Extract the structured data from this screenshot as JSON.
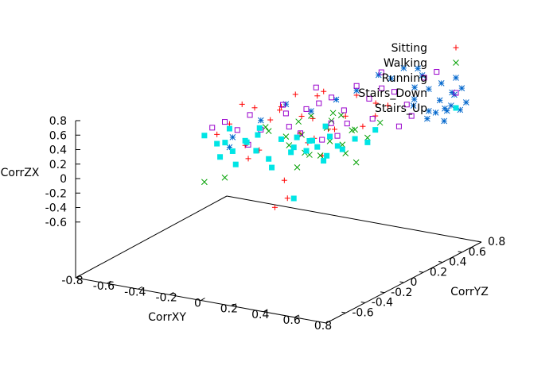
{
  "chart_data": {
    "type": "scatter",
    "projection": "3d",
    "grid": false,
    "legend_position": "top-right",
    "axes": {
      "x": {
        "label": "CorrXY",
        "range": [
          -0.8,
          0.8
        ],
        "ticks": [
          "-0.8",
          "-0.6",
          "-0.4",
          "-0.2",
          "0",
          "0.2",
          "0.4",
          "0.6",
          "0.8"
        ]
      },
      "y": {
        "label": "CorrYZ",
        "range": [
          -0.8,
          0.8
        ],
        "ticks": [
          "-0.8",
          "-0.6",
          "-0.4",
          "-0.2",
          "0",
          "0.2",
          "0.4",
          "0.6",
          "0.8"
        ],
        "visible_ticks": [
          "-0.6",
          "-0.4",
          "-0.2",
          "0",
          "0.2",
          "0.4",
          "0.6",
          "0.8"
        ]
      },
      "z": {
        "label": "CorrZX",
        "range": [
          -0.8,
          0.8
        ],
        "ticks": [
          "-0.6",
          "-0.4",
          "-0.2",
          "0",
          "0.2",
          "0.4",
          "0.6",
          "0.8"
        ]
      }
    },
    "series": [
      {
        "name": "Sitting",
        "marker": "plus",
        "color": "#ff0000",
        "points": [
          [
            -0.3,
            0.0,
            0.3
          ],
          [
            -0.25,
            0.05,
            0.5
          ],
          [
            -0.2,
            0.0,
            0.1
          ],
          [
            -0.1,
            0.1,
            0.35
          ],
          [
            0.0,
            0.05,
            0.55
          ],
          [
            0.05,
            0.0,
            -0.2
          ],
          [
            0.1,
            0.1,
            0.45
          ],
          [
            0.15,
            0.15,
            0.2
          ],
          [
            0.2,
            0.1,
            0.7
          ],
          [
            0.25,
            0.2,
            0.3
          ],
          [
            -0.15,
            -0.05,
            0.0
          ],
          [
            0.3,
            0.05,
            0.4
          ],
          [
            0.35,
            0.15,
            0.5
          ],
          [
            0.4,
            0.25,
            0.35
          ],
          [
            -0.05,
            -0.1,
            0.15
          ],
          [
            0.0,
            0.2,
            0.6
          ],
          [
            0.1,
            -0.05,
            -0.35
          ],
          [
            0.2,
            0.0,
            0.25
          ],
          [
            -0.35,
            -0.05,
            0.2
          ],
          [
            0.45,
            0.3,
            0.45
          ],
          [
            0.5,
            0.35,
            0.55
          ],
          [
            0.15,
            0.25,
            0.65
          ],
          [
            0.05,
            0.3,
            0.3
          ],
          [
            -0.1,
            0.2,
            0.4
          ],
          [
            0.3,
            0.35,
            0.6
          ],
          [
            0.22,
            0.12,
            0.05
          ],
          [
            0.12,
            0.05,
            0.3
          ],
          [
            -0.2,
            0.1,
            0.45
          ],
          [
            0.38,
            0.42,
            0.5
          ],
          [
            0.08,
            -0.15,
            -0.4
          ]
        ]
      },
      {
        "name": "Walking",
        "marker": "cross",
        "color": "#00a000",
        "points": [
          [
            -0.4,
            -0.1,
            -0.3
          ],
          [
            -0.3,
            -0.05,
            -0.25
          ],
          [
            -0.1,
            0.05,
            0.3
          ],
          [
            0.0,
            0.1,
            0.2
          ],
          [
            0.05,
            0.15,
            0.35
          ],
          [
            0.1,
            0.1,
            0.25
          ],
          [
            0.15,
            0.05,
            0.1
          ],
          [
            0.2,
            0.2,
            0.3
          ],
          [
            0.25,
            0.15,
            0.2
          ],
          [
            0.3,
            0.2,
            0.15
          ],
          [
            0.35,
            0.25,
            0.3
          ],
          [
            0.4,
            0.3,
            0.2
          ],
          [
            0.1,
            0.2,
            0.4
          ],
          [
            0.2,
            0.25,
            0.35
          ],
          [
            0.3,
            0.3,
            0.25
          ],
          [
            -0.05,
            0.0,
            0.3
          ],
          [
            0.15,
            0.1,
            0.05
          ],
          [
            0.25,
            0.05,
            0.1
          ],
          [
            0.35,
            0.15,
            0.1
          ],
          [
            0.45,
            0.35,
            0.35
          ],
          [
            0.05,
            0.05,
            0.15
          ],
          [
            0.18,
            0.3,
            0.4
          ],
          [
            0.28,
            0.22,
            0.45
          ],
          [
            0.4,
            0.18,
            0.0
          ],
          [
            0.12,
            0.02,
            -0.05
          ]
        ]
      },
      {
        "name": "Running",
        "marker": "star",
        "color": "#0066cc",
        "points": [
          [
            0.55,
            0.7,
            0.55
          ],
          [
            0.6,
            0.75,
            0.6
          ],
          [
            0.62,
            0.7,
            0.45
          ],
          [
            0.65,
            0.78,
            0.5
          ],
          [
            0.68,
            0.72,
            0.4
          ],
          [
            0.7,
            0.8,
            0.55
          ],
          [
            0.58,
            0.65,
            0.35
          ],
          [
            0.6,
            0.6,
            0.3
          ],
          [
            0.66,
            0.68,
            0.25
          ],
          [
            0.72,
            0.75,
            0.35
          ],
          [
            0.5,
            0.62,
            0.4
          ],
          [
            0.55,
            0.55,
            0.65
          ],
          [
            0.52,
            0.68,
            0.7
          ],
          [
            0.48,
            0.7,
            0.75
          ],
          [
            0.64,
            0.82,
            0.45
          ],
          [
            0.74,
            0.78,
            0.42
          ],
          [
            0.57,
            0.74,
            0.28
          ],
          [
            0.69,
            0.66,
            0.38
          ],
          [
            0.61,
            0.77,
            0.32
          ],
          [
            0.53,
            0.58,
            0.5
          ],
          [
            0.45,
            0.6,
            0.8
          ],
          [
            0.4,
            0.55,
            0.7
          ],
          [
            0.2,
            0.3,
            0.55
          ],
          [
            0.0,
            0.1,
            0.55
          ],
          [
            -0.1,
            0.0,
            0.4
          ],
          [
            -0.3,
            0.0,
            0.05
          ],
          [
            -0.25,
            -0.05,
            0.2
          ],
          [
            0.1,
            0.2,
            0.45
          ],
          [
            0.3,
            0.35,
            0.65
          ],
          [
            0.35,
            0.5,
            0.75
          ]
        ]
      },
      {
        "name": "Stairs_Down",
        "marker": "square-open",
        "color": "#9900cc",
        "points": [
          [
            -0.35,
            -0.1,
            0.3
          ],
          [
            -0.3,
            -0.05,
            0.35
          ],
          [
            -0.25,
            0.0,
            0.25
          ],
          [
            -0.2,
            0.05,
            0.4
          ],
          [
            -0.1,
            0.0,
            0.3
          ],
          [
            0.0,
            0.1,
            0.45
          ],
          [
            0.1,
            0.15,
            0.5
          ],
          [
            0.15,
            0.2,
            0.55
          ],
          [
            0.2,
            0.25,
            0.6
          ],
          [
            0.25,
            0.3,
            0.45
          ],
          [
            0.3,
            0.35,
            0.7
          ],
          [
            0.35,
            0.4,
            0.55
          ],
          [
            0.4,
            0.45,
            0.65
          ],
          [
            0.45,
            0.5,
            0.6
          ],
          [
            0.5,
            0.55,
            0.45
          ],
          [
            0.55,
            0.65,
            0.7
          ],
          [
            0.6,
            0.7,
            0.75
          ],
          [
            0.5,
            0.6,
            0.3
          ],
          [
            0.45,
            0.55,
            0.2
          ],
          [
            0.3,
            0.25,
            0.35
          ],
          [
            0.2,
            0.15,
            0.2
          ],
          [
            0.05,
            0.05,
            0.35
          ],
          [
            -0.15,
            -0.05,
            0.15
          ],
          [
            0.12,
            0.22,
            0.7
          ],
          [
            0.38,
            0.48,
            0.8
          ],
          [
            0.28,
            0.18,
            0.25
          ],
          [
            0.18,
            0.28,
            0.3
          ],
          [
            0.42,
            0.32,
            0.4
          ],
          [
            -0.05,
            0.15,
            0.5
          ],
          [
            0.08,
            0.12,
            0.25
          ]
        ]
      },
      {
        "name": "Stairs_Up",
        "marker": "square-filled",
        "color": "#00e5e5",
        "points": [
          [
            -0.4,
            -0.1,
            0.2
          ],
          [
            -0.35,
            -0.05,
            0.1
          ],
          [
            -0.3,
            -0.1,
            0.0
          ],
          [
            -0.3,
            0.0,
            0.25
          ],
          [
            -0.25,
            -0.05,
            0.05
          ],
          [
            -0.2,
            0.0,
            0.15
          ],
          [
            -0.2,
            -0.1,
            -0.05
          ],
          [
            -0.15,
            0.05,
            0.2
          ],
          [
            -0.1,
            -0.05,
            0.1
          ],
          [
            -0.05,
            0.0,
            0.0
          ],
          [
            0.0,
            0.05,
            0.2
          ],
          [
            0.05,
            0.1,
            0.1
          ],
          [
            0.1,
            0.05,
            0.25
          ],
          [
            0.1,
            0.15,
            0.05
          ],
          [
            0.15,
            0.1,
            0.2
          ],
          [
            0.2,
            0.1,
            0.15
          ],
          [
            0.2,
            0.2,
            0.0
          ],
          [
            0.25,
            0.15,
            0.25
          ],
          [
            0.3,
            0.2,
            0.1
          ],
          [
            0.35,
            0.25,
            0.2
          ],
          [
            0.4,
            0.3,
            0.15
          ],
          [
            0.45,
            0.3,
            0.3
          ],
          [
            0.0,
            -0.05,
            -0.05
          ],
          [
            -0.12,
            0.02,
            0.3
          ],
          [
            0.08,
            0.02,
            0.1
          ],
          [
            -0.28,
            -0.08,
            0.15
          ],
          [
            0.18,
            0.22,
            0.3
          ],
          [
            0.27,
            0.05,
            0.05
          ],
          [
            0.05,
            0.1,
            -0.45
          ],
          [
            -0.22,
            0.05,
            0.1
          ],
          [
            0.33,
            0.1,
            0.2
          ],
          [
            0.12,
            0.18,
            0.15
          ]
        ]
      }
    ]
  }
}
